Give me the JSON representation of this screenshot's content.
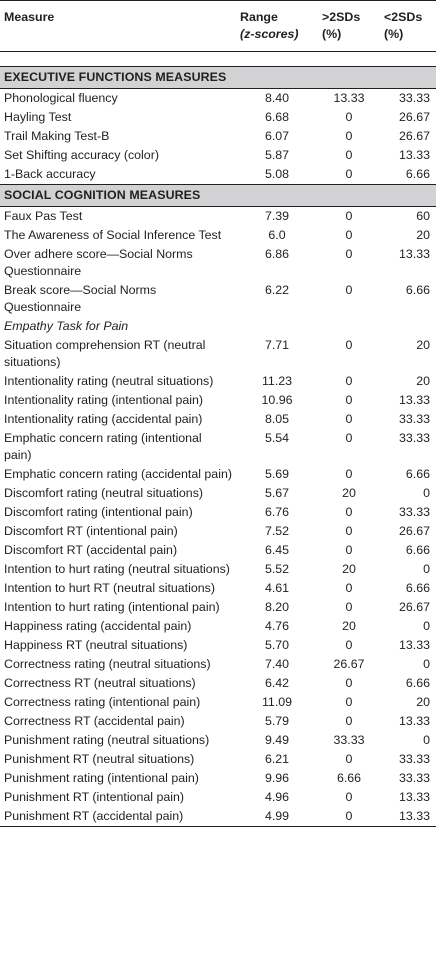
{
  "header": {
    "measure": "Measure",
    "range_line1": "Range",
    "range_line2": "(z-scores)",
    "gt_line1": ">2SDs",
    "gt_line2": "(%)",
    "lt_line1": "<2SDs",
    "lt_line2": "(%)"
  },
  "sections": {
    "executive": "EXECUTIVE FUNCTIONS MEASURES",
    "social": "SOCIAL COGNITION MEASURES",
    "empathy_subheading": "Empathy Task for Pain"
  },
  "executive_rows": [
    {
      "measure": "Phonological fluency",
      "range": "8.40",
      "gt": "13.33",
      "lt": "33.33"
    },
    {
      "measure": "Hayling Test",
      "range": "6.68",
      "gt": "0",
      "lt": "26.67"
    },
    {
      "measure": "Trail Making Test-B",
      "range": "6.07",
      "gt": "0",
      "lt": "26.67"
    },
    {
      "measure": "Set Shifting accuracy (color)",
      "range": "5.87",
      "gt": "0",
      "lt": "13.33"
    },
    {
      "measure": "1-Back accuracy",
      "range": "5.08",
      "gt": "0",
      "lt": "6.66"
    }
  ],
  "social_rows": [
    {
      "measure": "Faux Pas Test",
      "range": "7.39",
      "gt": "0",
      "lt": "60"
    },
    {
      "measure": "The Awareness of Social Inference Test",
      "range": "6.0",
      "gt": "0",
      "lt": "20"
    },
    {
      "measure": "Over adhere score—Social Norms Questionnaire",
      "range": "6.86",
      "gt": "0",
      "lt": "13.33"
    },
    {
      "measure": "Break score—Social Norms Questionnaire",
      "range": "6.22",
      "gt": "0",
      "lt": "6.66"
    }
  ],
  "empathy_rows": [
    {
      "measure": "Situation comprehension RT (neutral situations)",
      "range": "7.71",
      "gt": "0",
      "lt": "20"
    },
    {
      "measure": "Intentionality rating (neutral situations)",
      "range": "11.23",
      "gt": "0",
      "lt": "20"
    },
    {
      "measure": "Intentionality rating (intentional pain)",
      "range": "10.96",
      "gt": "0",
      "lt": "13.33"
    },
    {
      "measure": "Intentionality rating (accidental pain)",
      "range": "8.05",
      "gt": "0",
      "lt": "33.33"
    },
    {
      "measure": "Emphatic concern rating (intentional pain)",
      "range": "5.54",
      "gt": "0",
      "lt": "33.33"
    },
    {
      "measure": "Emphatic concern rating (accidental pain)",
      "range": "5.69",
      "gt": "0",
      "lt": "6.66"
    },
    {
      "measure": "Discomfort rating (neutral situations)",
      "range": "5.67",
      "gt": "20",
      "lt": "0"
    },
    {
      "measure": "Discomfort rating (intentional pain)",
      "range": "6.76",
      "gt": "0",
      "lt": "33.33"
    },
    {
      "measure": "Discomfort RT (intentional pain)",
      "range": "7.52",
      "gt": "0",
      "lt": "26.67"
    },
    {
      "measure": "Discomfort RT (accidental pain)",
      "range": "6.45",
      "gt": "0",
      "lt": "6.66"
    },
    {
      "measure": "Intention to hurt rating (neutral situations)",
      "range": "5.52",
      "gt": "20",
      "lt": "0"
    },
    {
      "measure": "Intention to hurt RT (neutral situations)",
      "range": "4.61",
      "gt": "0",
      "lt": "6.66"
    },
    {
      "measure": "Intention to hurt rating (intentional pain)",
      "range": "8.20",
      "gt": "0",
      "lt": "26.67"
    },
    {
      "measure": "Happiness rating (accidental pain)",
      "range": "4.76",
      "gt": "20",
      "lt": "0"
    },
    {
      "measure": "Happiness RT (neutral situations)",
      "range": "5.70",
      "gt": "0",
      "lt": "13.33"
    },
    {
      "measure": "Correctness rating (neutral situations)",
      "range": "7.40",
      "gt": "26.67",
      "lt": "0"
    },
    {
      "measure": "Correctness RT (neutral situations)",
      "range": "6.42",
      "gt": "0",
      "lt": "6.66"
    },
    {
      "measure": "Correctness rating (intentional pain)",
      "range": "11.09",
      "gt": "0",
      "lt": "20"
    },
    {
      "measure": "Correctness RT (accidental pain)",
      "range": "5.79",
      "gt": "0",
      "lt": "13.33"
    },
    {
      "measure": "Punishment rating (neutral situations)",
      "range": "9.49",
      "gt": "33.33",
      "lt": "0"
    },
    {
      "measure": "Punishment RT (neutral situations)",
      "range": "6.21",
      "gt": "0",
      "lt": "33.33"
    },
    {
      "measure": "Punishment rating (intentional pain)",
      "range": "9.96",
      "gt": "6.66",
      "lt": "33.33"
    },
    {
      "measure": "Punishment RT (intentional pain)",
      "range": "4.96",
      "gt": "0",
      "lt": "13.33"
    },
    {
      "measure": "Punishment RT (accidental pain)",
      "range": "4.99",
      "gt": "0",
      "lt": "13.33"
    }
  ],
  "colors": {
    "section_band": "#d1d2d4",
    "rule": "#231f20",
    "text": "#231f20"
  }
}
